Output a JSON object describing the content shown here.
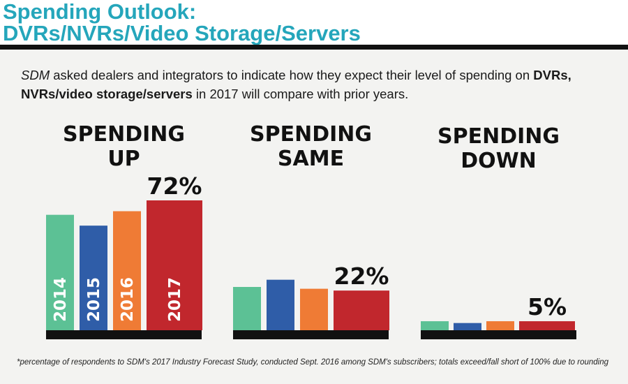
{
  "title": {
    "line1": "Spending Outlook:",
    "line2": "DVRs/NVRs/Video Storage/Servers"
  },
  "intro": {
    "brand": "SDM",
    "text_a": " asked dealers and integrators to indicate how they expect their level of spending on ",
    "bold_a": "DVRs,",
    "bold_b": "NVRs/video storage/servers",
    "text_b": " in 2017 will compare with prior years."
  },
  "footnote": "*percentage of respondents to SDM's 2017 Industry Forecast Study, conducted Sept. 2016 among SDM's subscribers; totals exceed/fall short of 100% due to rounding",
  "colors": {
    "2014": "#5cc195",
    "2015": "#2f5da8",
    "2016": "#ef7b35",
    "2017": "#c1272d",
    "baseline": "#111111",
    "title": "#25a6bb"
  },
  "chart_data": {
    "type": "bar",
    "series_names": [
      "2014",
      "2015",
      "2016",
      "2017"
    ],
    "groups": [
      {
        "heading": [
          "SPENDING",
          "UP"
        ],
        "values": [
          64,
          58,
          66,
          72
        ],
        "label": "72%",
        "show_years": true
      },
      {
        "heading": [
          "SPENDING",
          "SAME"
        ],
        "values": [
          24,
          28,
          23,
          22
        ],
        "label": "22%",
        "show_years": false
      },
      {
        "heading": [
          "SPENDING",
          "DOWN"
        ],
        "values": [
          5,
          4,
          5,
          5
        ],
        "label": "5%",
        "show_years": false
      }
    ],
    "ylim": [
      0,
      72
    ]
  }
}
